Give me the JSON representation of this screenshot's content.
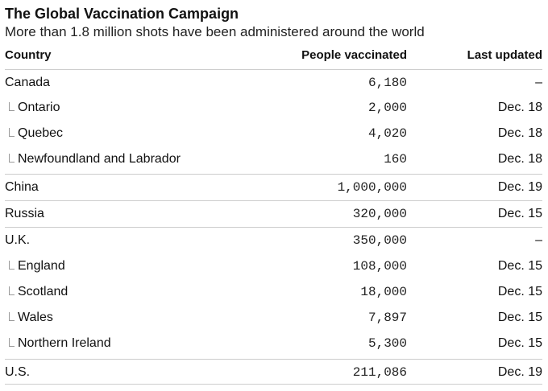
{
  "chart_data": {
    "type": "table",
    "title": "The Global Vaccination Campaign",
    "subtitle": "More than 1.8 million shots have been administered around the world",
    "columns": [
      "Country",
      "People vaccinated",
      "Last updated"
    ],
    "rows": [
      {
        "name": "Canada",
        "value": "6,180",
        "updated": "–",
        "level": 0
      },
      {
        "name": "Ontario",
        "value": "2,000",
        "updated": "Dec. 18",
        "level": 1
      },
      {
        "name": "Quebec",
        "value": "4,020",
        "updated": "Dec. 18",
        "level": 1
      },
      {
        "name": "Newfoundland and Labrador",
        "value": "160",
        "updated": "Dec. 18",
        "level": 1
      },
      {
        "name": "China",
        "value": "1,000,000",
        "updated": "Dec. 19",
        "level": 0
      },
      {
        "name": "Russia",
        "value": "320,000",
        "updated": "Dec. 15",
        "level": 0
      },
      {
        "name": "U.K.",
        "value": "350,000",
        "updated": "–",
        "level": 0
      },
      {
        "name": "England",
        "value": "108,000",
        "updated": "Dec. 15",
        "level": 1
      },
      {
        "name": "Scotland",
        "value": "18,000",
        "updated": "Dec. 15",
        "level": 1
      },
      {
        "name": "Wales",
        "value": "7,897",
        "updated": "Dec. 15",
        "level": 1
      },
      {
        "name": "Northern Ireland",
        "value": "5,300",
        "updated": "Dec. 15",
        "level": 1
      },
      {
        "name": "U.S.",
        "value": "211,086",
        "updated": "Dec. 19",
        "level": 0
      }
    ]
  }
}
